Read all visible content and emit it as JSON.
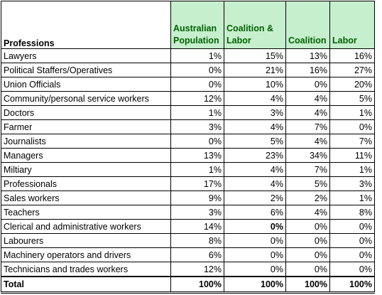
{
  "headers": {
    "profession": "Professions",
    "australian_population_line1": "Australian",
    "australian_population_line2": "Population",
    "coalition_labor_line1": "Coalition &",
    "coalition_labor_line2": "Labor",
    "coalition": "Coalition",
    "labor": "Labor"
  },
  "rows": [
    {
      "profession": "Lawyers",
      "australian_population": "1%",
      "coalition_labor": "15%",
      "coalition": "13%",
      "labor": "16%"
    },
    {
      "profession": "Political Staffers/Operatives",
      "australian_population": "0%",
      "coalition_labor": "21%",
      "coalition": "16%",
      "labor": "27%"
    },
    {
      "profession": "Union Officials",
      "australian_population": "0%",
      "coalition_labor": "10%",
      "coalition": "0%",
      "labor": "20%"
    },
    {
      "profession": "Community/personal service workers",
      "australian_population": "12%",
      "coalition_labor": "4%",
      "coalition": "4%",
      "labor": "5%"
    },
    {
      "profession": "Doctors",
      "australian_population": "1%",
      "coalition_labor": "3%",
      "coalition": "4%",
      "labor": "1%"
    },
    {
      "profession": "Farmer",
      "australian_population": "3%",
      "coalition_labor": "4%",
      "coalition": "7%",
      "labor": "0%"
    },
    {
      "profession": "Journalists",
      "australian_population": "0%",
      "coalition_labor": "5%",
      "coalition": "4%",
      "labor": "7%"
    },
    {
      "profession": "Managers",
      "australian_population": "13%",
      "coalition_labor": "23%",
      "coalition": "34%",
      "labor": "11%"
    },
    {
      "profession": "Miltiary",
      "australian_population": "1%",
      "coalition_labor": "4%",
      "coalition": "7%",
      "labor": "1%"
    },
    {
      "profession": "Professionals",
      "australian_population": "17%",
      "coalition_labor": "4%",
      "coalition": "5%",
      "labor": "3%"
    },
    {
      "profession": "Sales workers",
      "australian_population": "9%",
      "coalition_labor": "2%",
      "coalition": "2%",
      "labor": "1%"
    },
    {
      "profession": "Teachers",
      "australian_population": "3%",
      "coalition_labor": "6%",
      "coalition": "4%",
      "labor": "8%"
    },
    {
      "profession": "Clerical and administrative workers",
      "australian_population": "14%",
      "coalition_labor": "0%",
      "coalition": "0%",
      "labor": "0%"
    },
    {
      "profession": "Labourers",
      "australian_population": "8%",
      "coalition_labor": "0%",
      "coalition": "0%",
      "labor": "0%"
    },
    {
      "profession": "Machinery operators and drivers",
      "australian_population": "6%",
      "coalition_labor": "0%",
      "coalition": "0%",
      "labor": "0%"
    },
    {
      "profession": "Technicians and trades workers",
      "australian_population": "12%",
      "coalition_labor": "0%",
      "coalition": "0%",
      "labor": "0%"
    }
  ],
  "total": {
    "profession": "Total",
    "australian_population": "100%",
    "coalition_labor": "100%",
    "coalition": "100%",
    "labor": "100%"
  },
  "colors": {
    "header_fill": "#c6efce",
    "header_text": "#006100",
    "grid": "#000000"
  }
}
